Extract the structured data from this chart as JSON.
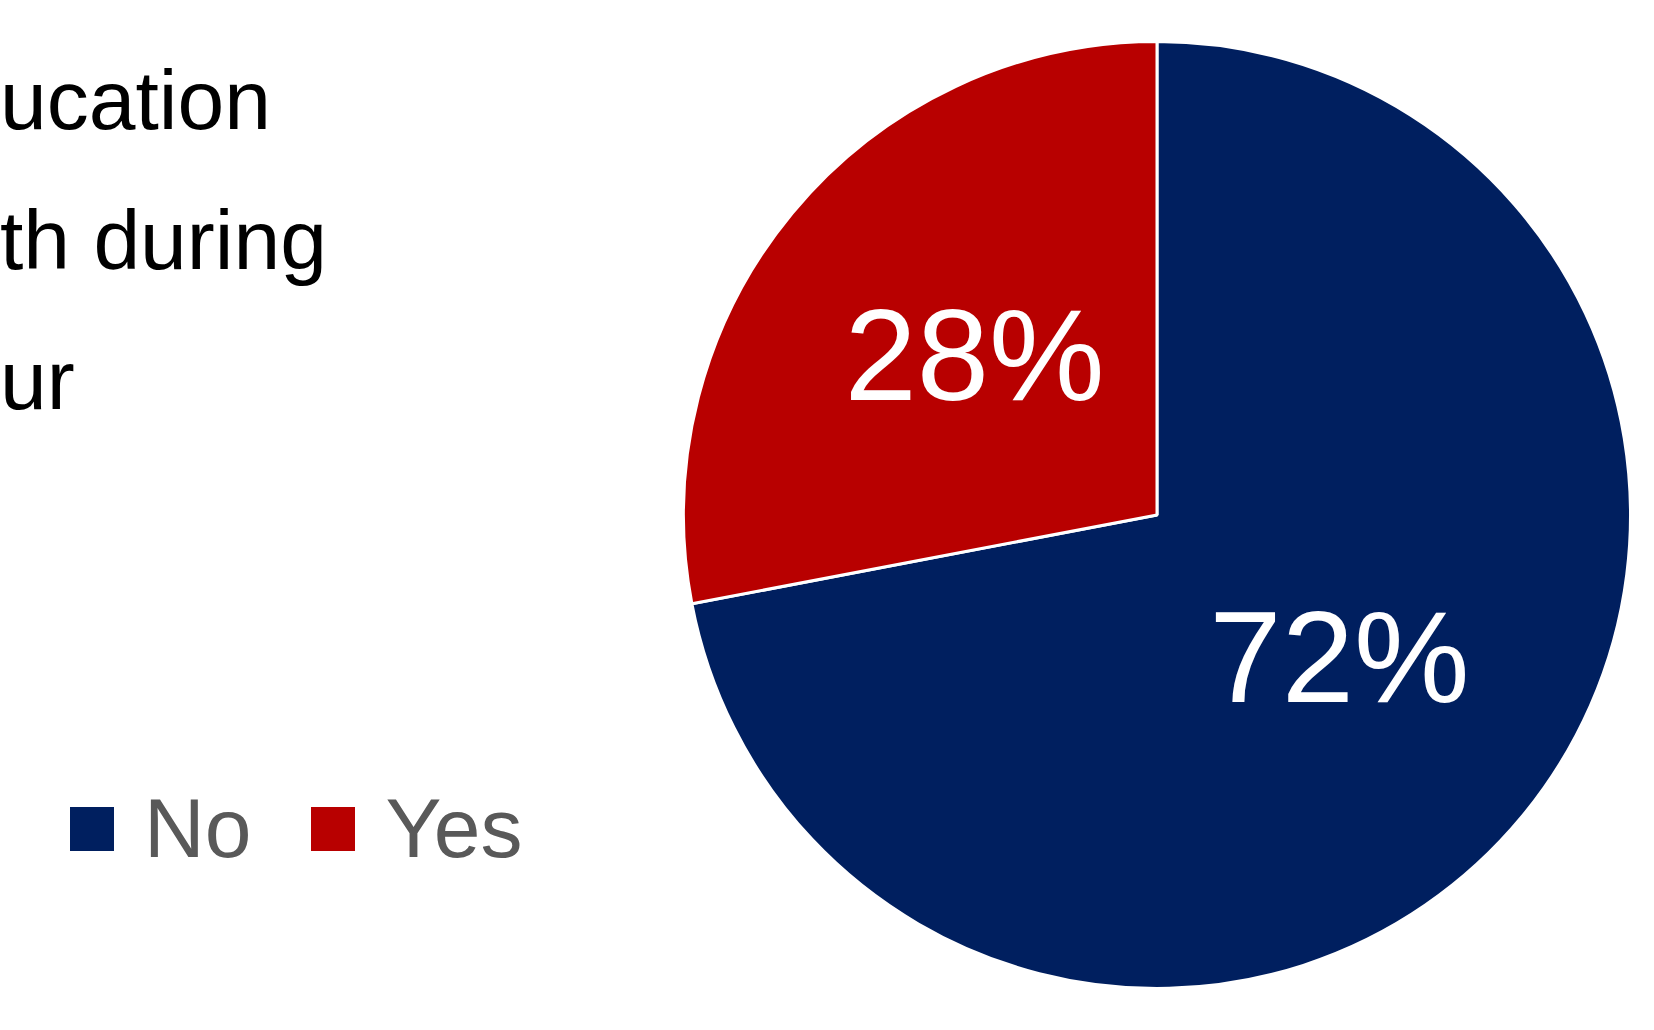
{
  "chart_data": {
    "type": "pie",
    "title": "ucation\nth during\nur",
    "categories": [
      "No",
      "Yes"
    ],
    "values": [
      72,
      28
    ],
    "colors": [
      "#001f5f",
      "#b80000"
    ],
    "value_labels": [
      "72%",
      "28%"
    ],
    "legend": "bottom left"
  }
}
